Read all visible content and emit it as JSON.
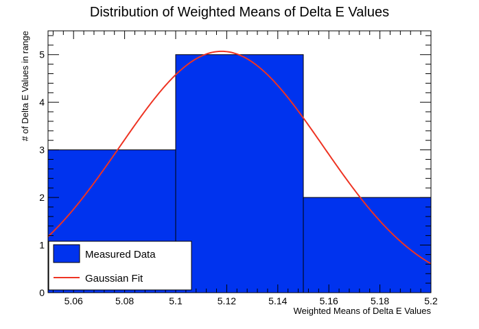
{
  "chart_data": {
    "type": "bar",
    "title": "Distribution of Weighted Means of Delta E Values",
    "xlabel": "Weighted Means of Delta E Values",
    "ylabel": "# of Delta E Values in range",
    "xlim": [
      5.05,
      5.2
    ],
    "ylim": [
      0,
      5.5
    ],
    "x_ticks": [
      "5.06",
      "5.08",
      "5.1",
      "5.12",
      "5.14",
      "5.16",
      "5.18",
      "5.2"
    ],
    "y_ticks": [
      "0",
      "1",
      "2",
      "3",
      "4",
      "5"
    ],
    "bins": [
      {
        "x0": 5.05,
        "x1": 5.1,
        "value": 3
      },
      {
        "x0": 5.1,
        "x1": 5.15,
        "value": 5
      },
      {
        "x0": 5.15,
        "x1": 5.2,
        "value": 2
      }
    ],
    "series": [
      {
        "name": "Measured Data",
        "kind": "histogram",
        "color": "#0033ee"
      },
      {
        "name": "Gaussian Fit",
        "kind": "curve",
        "color": "#ee3322",
        "amplitude": 5.07,
        "mean": 5.118,
        "sigma": 0.0398
      }
    ],
    "legend": "bottom-left",
    "grid": false
  }
}
